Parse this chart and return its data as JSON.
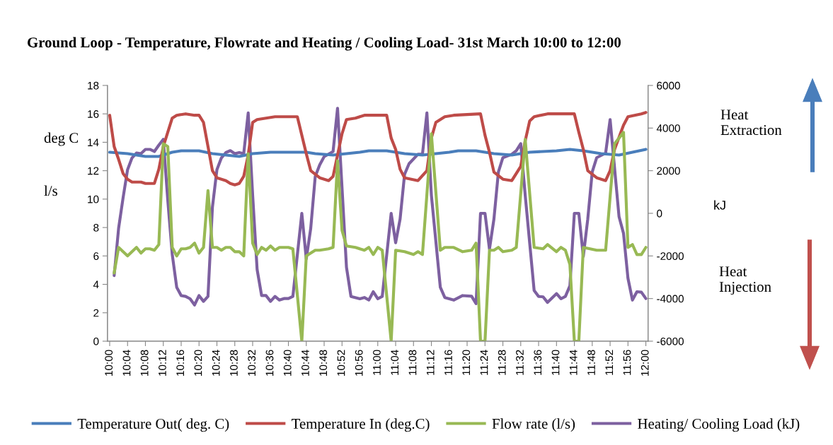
{
  "chart_data": {
    "type": "line",
    "title": "Ground Loop - Temperature, Flowrate and Heating / Cooling Load- 31st March 10:00 to 12:00",
    "ylabel": "deg C",
    "y2label": "kJ",
    "annotations": [
      "l/s",
      "Heat Extraction",
      "Heat Injection"
    ],
    "xlim": [
      9.9917,
      12.0083
    ],
    "xticks": [
      {
        "value": 10,
        "label": "10:00"
      },
      {
        "value": 10.0667,
        "label": "10:04"
      },
      {
        "value": 10.1333,
        "label": "10:08"
      },
      {
        "value": 10.2,
        "label": "10:12"
      },
      {
        "value": 10.2667,
        "label": "10:16"
      },
      {
        "value": 10.3333,
        "label": "10:20"
      },
      {
        "value": 10.4,
        "label": "10:24"
      },
      {
        "value": 10.4667,
        "label": "10:28"
      },
      {
        "value": 10.5333,
        "label": "10:32"
      },
      {
        "value": 10.6,
        "label": "10:36"
      },
      {
        "value": 10.6667,
        "label": "10:40"
      },
      {
        "value": 10.7333,
        "label": "10:44"
      },
      {
        "value": 10.8,
        "label": "10:48"
      },
      {
        "value": 10.8667,
        "label": "10:52"
      },
      {
        "value": 10.9333,
        "label": "10:56"
      },
      {
        "value": 11,
        "label": "11:00"
      },
      {
        "value": 11.0667,
        "label": "11:04"
      },
      {
        "value": 11.1333,
        "label": "11:08"
      },
      {
        "value": 11.2,
        "label": "11:12"
      },
      {
        "value": 11.2667,
        "label": "11:16"
      },
      {
        "value": 11.3333,
        "label": "11:20"
      },
      {
        "value": 11.4,
        "label": "11:24"
      },
      {
        "value": 11.4667,
        "label": "11:28"
      },
      {
        "value": 11.5333,
        "label": "11:32"
      },
      {
        "value": 11.6,
        "label": "11:36"
      },
      {
        "value": 11.6667,
        "label": "11:40"
      },
      {
        "value": 11.7333,
        "label": "11:44"
      },
      {
        "value": 11.8,
        "label": "11:48"
      },
      {
        "value": 11.8667,
        "label": "11:52"
      },
      {
        "value": 11.9333,
        "label": "11:56"
      },
      {
        "value": 12,
        "label": "12:00"
      }
    ],
    "ylim": [
      0,
      18
    ],
    "yticks": [
      0,
      2,
      4,
      6,
      8,
      10,
      12,
      14,
      16,
      18
    ],
    "y2lim": [
      -6000,
      6000
    ],
    "y2ticks": [
      -6000,
      -4000,
      -2000,
      0,
      2000,
      4000,
      6000
    ],
    "grid": false,
    "legend": "bottom",
    "series": [
      {
        "name": "Temperature Out( deg. C)",
        "color": "#4a7ebb",
        "x": [
          10,
          10.0667,
          10.1333,
          10.1833,
          10.2333,
          10.2667,
          10.3333,
          10.3833,
          10.4333,
          10.4833,
          10.5333,
          10.6,
          10.7333,
          10.7667,
          10.8333,
          10.8833,
          10.9333,
          10.9667,
          11.0333,
          11.1,
          11.1667,
          11.2167,
          11.2667,
          11.3,
          11.3667,
          11.4333,
          11.5,
          11.5667,
          11.6667,
          11.7167,
          11.7667,
          11.8333,
          11.9,
          11.95,
          12
        ],
        "values": [
          13.3,
          13.2,
          13.0,
          13.0,
          13.3,
          13.4,
          13.4,
          13.2,
          13.1,
          13.0,
          13.2,
          13.3,
          13.3,
          13.2,
          13.1,
          13.2,
          13.3,
          13.4,
          13.4,
          13.2,
          13.1,
          13.2,
          13.3,
          13.4,
          13.4,
          13.2,
          13.1,
          13.3,
          13.4,
          13.5,
          13.4,
          13.2,
          13.1,
          13.3,
          13.5
        ]
      },
      {
        "name": "Temperature In (deg.C)",
        "color": "#be4b48",
        "x": [
          10,
          10.0167,
          10.0333,
          10.05,
          10.0667,
          10.0833,
          10.1,
          10.1167,
          10.1333,
          10.1667,
          10.1833,
          10.2,
          10.2333,
          10.25,
          10.2833,
          10.3167,
          10.3333,
          10.35,
          10.3667,
          10.3833,
          10.4,
          10.4333,
          10.45,
          10.4667,
          10.4833,
          10.5,
          10.5167,
          10.5333,
          10.55,
          10.5833,
          10.6167,
          10.7,
          10.7333,
          10.75,
          10.7833,
          10.8167,
          10.8333,
          10.8667,
          10.8833,
          10.9167,
          10.95,
          11.0333,
          11.05,
          11.0667,
          11.0833,
          11.1,
          11.15,
          11.1833,
          11.2,
          11.2167,
          11.25,
          11.2833,
          11.3833,
          11.4,
          11.4167,
          11.4333,
          11.4667,
          11.5,
          11.5333,
          11.55,
          11.5667,
          11.5833,
          11.6333,
          11.7333,
          11.75,
          11.7667,
          11.7833,
          11.8167,
          11.85,
          11.8667,
          11.8833,
          11.9167,
          11.9333,
          11.9833,
          12
        ],
        "values": [
          15.9,
          13.7,
          12.8,
          11.8,
          11.4,
          11.2,
          11.2,
          11.2,
          11.1,
          11.1,
          12.1,
          13.7,
          15.7,
          15.9,
          16.0,
          15.9,
          15.9,
          15.4,
          13.7,
          12.0,
          11.5,
          11.3,
          11.1,
          11.0,
          11.1,
          11.6,
          13.1,
          15.4,
          15.6,
          15.7,
          15.8,
          15.8,
          13.2,
          12.0,
          11.5,
          11.3,
          11.6,
          14.6,
          15.6,
          15.7,
          15.9,
          15.9,
          14.3,
          13.5,
          12.1,
          11.5,
          11.3,
          12.0,
          14.3,
          15.4,
          15.8,
          15.9,
          16.0,
          14.5,
          13.3,
          11.9,
          11.4,
          11.3,
          12.3,
          14.1,
          15.5,
          15.8,
          16.0,
          16.0,
          14.7,
          13.5,
          12.0,
          11.5,
          11.3,
          12.0,
          13.5,
          15.2,
          15.8,
          16.0,
          16.1
        ]
      },
      {
        "name": "Flow rate (l/s)",
        "color": "#98b954",
        "x": [
          10.0167,
          10.0333,
          10.05,
          10.0667,
          10.0833,
          10.1,
          10.1167,
          10.1333,
          10.15,
          10.1667,
          10.1833,
          10.2,
          10.2167,
          10.2333,
          10.25,
          10.2667,
          10.2833,
          10.3,
          10.3167,
          10.3333,
          10.35,
          10.3667,
          10.3833,
          10.4,
          10.4167,
          10.4333,
          10.45,
          10.4667,
          10.4833,
          10.5,
          10.5167,
          10.5333,
          10.55,
          10.5667,
          10.5833,
          10.6,
          10.6167,
          10.6333,
          10.6667,
          10.6833,
          10.7167,
          10.7333,
          10.7667,
          10.7833,
          10.8167,
          10.8333,
          10.85,
          10.8667,
          10.8833,
          10.9167,
          10.95,
          10.9667,
          10.9833,
          11,
          11.0167,
          11.05,
          11.0667,
          11.1,
          11.1333,
          11.15,
          11.1667,
          11.2,
          11.2333,
          11.25,
          11.2833,
          11.3167,
          11.35,
          11.3667,
          11.3833,
          11.4,
          11.4167,
          11.4333,
          11.45,
          11.4667,
          11.5,
          11.5167,
          11.55,
          11.5833,
          11.6167,
          11.6333,
          11.6667,
          11.6833,
          11.7,
          11.7167,
          11.7333,
          11.75,
          11.7667,
          11.8167,
          11.85,
          11.8833,
          11.9167,
          11.9333,
          11.95,
          11.9667,
          11.9833,
          12
        ],
        "values": [
          4.8,
          6.6,
          6.3,
          6.0,
          6.3,
          6.6,
          6.2,
          6.5,
          6.5,
          6.4,
          6.8,
          13.9,
          13.7,
          6.6,
          6.0,
          6.5,
          6.5,
          6.6,
          6.9,
          6.2,
          6.6,
          10.6,
          6.6,
          6.6,
          6.4,
          6.6,
          6.6,
          6.3,
          6.3,
          6.0,
          13.2,
          6.9,
          6.1,
          6.6,
          6.4,
          6.7,
          6.4,
          6.6,
          6.6,
          6.5,
          0,
          6.0,
          6.4,
          6.4,
          6.5,
          6.6,
          12.7,
          7.8,
          6.7,
          6.6,
          6.4,
          6.6,
          6.1,
          6.6,
          6.4,
          0,
          6.4,
          6.3,
          6.1,
          6.3,
          6.1,
          14.6,
          6.4,
          6.6,
          6.6,
          6.3,
          6.4,
          6.9,
          0,
          0,
          6.4,
          6.4,
          6.6,
          6.3,
          6.4,
          6.6,
          14.2,
          6.6,
          6.5,
          6.8,
          6.3,
          6.6,
          6.4,
          5.4,
          0,
          0,
          6.6,
          6.4,
          6.4,
          13.9,
          14.7,
          6.6,
          6.8,
          6.1,
          6.1,
          6.6
        ]
      },
      {
        "name": "Heating/ Cooling Load (kJ)",
        "color": "#7d60a0",
        "axis": "y2",
        "x": [
          10.0167,
          10.0333,
          10.05,
          10.0667,
          10.0833,
          10.1,
          10.1167,
          10.1333,
          10.15,
          10.1667,
          10.1833,
          10.2,
          10.2167,
          10.2333,
          10.25,
          10.2667,
          10.2833,
          10.3,
          10.3167,
          10.3333,
          10.35,
          10.3667,
          10.3833,
          10.4,
          10.4167,
          10.4333,
          10.45,
          10.4667,
          10.4833,
          10.5,
          10.5167,
          10.5333,
          10.55,
          10.5667,
          10.5833,
          10.6,
          10.6167,
          10.6333,
          10.65,
          10.6667,
          10.6833,
          10.7167,
          10.7333,
          10.75,
          10.7667,
          10.7833,
          10.8,
          10.8333,
          10.85,
          10.8833,
          10.9,
          10.9333,
          10.95,
          10.9667,
          10.9833,
          11,
          11.0167,
          11.05,
          11.0667,
          11.0833,
          11.1,
          11.1167,
          11.15,
          11.1667,
          11.1833,
          11.2,
          11.2333,
          11.25,
          11.2833,
          11.3167,
          11.35,
          11.3667,
          11.3833,
          11.4,
          11.4167,
          11.4333,
          11.45,
          11.4667,
          11.5,
          11.5167,
          11.5333,
          11.55,
          11.5833,
          11.6,
          11.6167,
          11.6333,
          11.6667,
          11.6833,
          11.7,
          11.7167,
          11.7333,
          11.75,
          11.7667,
          11.7833,
          11.8,
          11.8167,
          11.85,
          11.8667,
          11.9,
          11.9167,
          11.9333,
          11.95,
          11.9667,
          11.9833,
          12
        ],
        "values": [
          -2920,
          -700,
          730,
          2050,
          2600,
          2830,
          2800,
          3000,
          3000,
          2900,
          3200,
          3470,
          620,
          -1920,
          -3470,
          -3860,
          -3900,
          -4010,
          -4300,
          -3860,
          -4130,
          -3900,
          290,
          2050,
          2600,
          2850,
          2940,
          2800,
          2850,
          2800,
          4710,
          850,
          -2640,
          -3860,
          -3860,
          -4130,
          -3900,
          -4070,
          -4000,
          -4000,
          -3900,
          0,
          -2140,
          -700,
          1720,
          2270,
          2660,
          2900,
          4930,
          -2530,
          -3900,
          -4010,
          -3950,
          -4070,
          -3680,
          -4010,
          -3900,
          0,
          -1380,
          -270,
          1830,
          2330,
          2770,
          2770,
          4710,
          850,
          -3470,
          -3950,
          -4070,
          -3860,
          -3890,
          -4240,
          0,
          0,
          -1680,
          -270,
          1940,
          2610,
          2770,
          2940,
          3270,
          850,
          -3620,
          -3900,
          -3920,
          -4180,
          -3770,
          -4010,
          -3900,
          -3400,
          0,
          0,
          -2020,
          -270,
          1940,
          2610,
          2830,
          4400,
          -160,
          -940,
          -3050,
          -4070,
          -3680,
          -3700,
          -4000
        ]
      }
    ]
  }
}
